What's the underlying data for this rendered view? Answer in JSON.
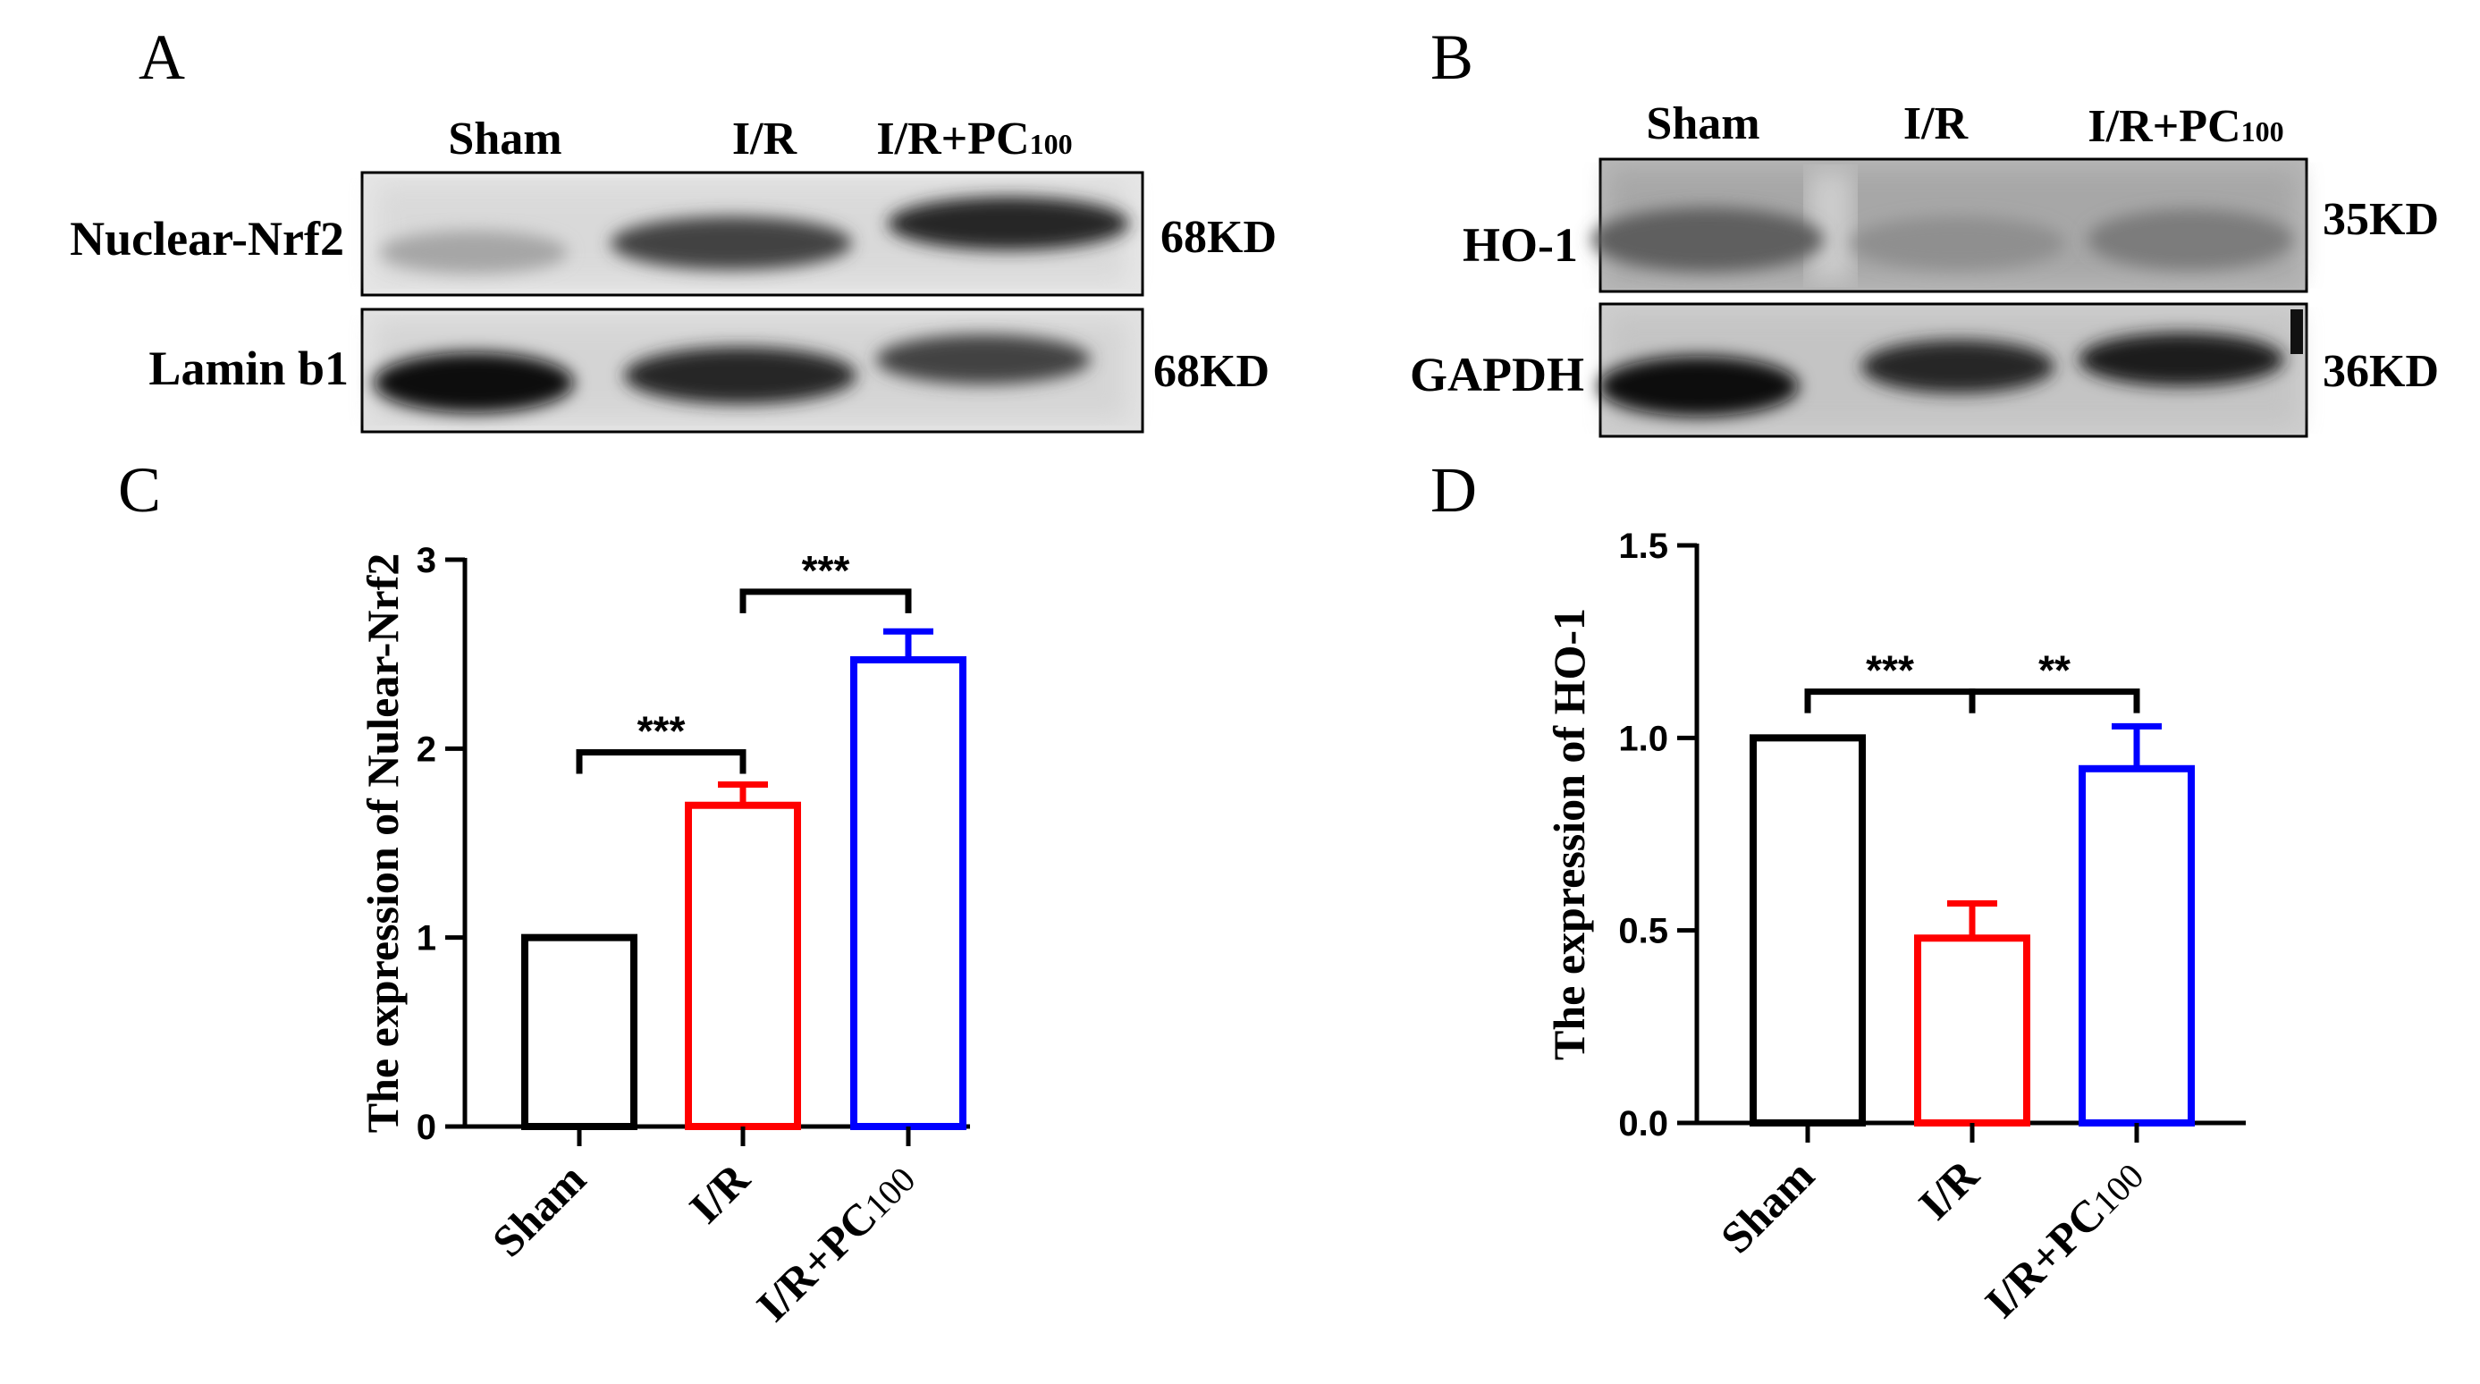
{
  "panels": {
    "A": {
      "letter": "A",
      "lanes": [
        {
          "main": "Sham",
          "sub": ""
        },
        {
          "main": "I/R",
          "sub": ""
        },
        {
          "main": "I/R+PC",
          "sub": "100"
        }
      ],
      "rows": [
        {
          "label": "Nuclear-Nrf2",
          "kd": "68KD",
          "intensities": [
            0.18,
            0.7,
            0.85
          ]
        },
        {
          "label": "Lamin b1",
          "kd": "68KD",
          "intensities": [
            1.0,
            0.85,
            0.7
          ]
        }
      ]
    },
    "B": {
      "letter": "B",
      "lanes": [
        {
          "main": "Sham",
          "sub": ""
        },
        {
          "main": "I/R",
          "sub": ""
        },
        {
          "main": "I/R+PC",
          "sub": "100"
        }
      ],
      "rows": [
        {
          "label": "HO-1",
          "kd": "35KD",
          "intensities": [
            0.55,
            0.3,
            0.4
          ]
        },
        {
          "label": "GAPDH",
          "kd": "36KD",
          "intensities": [
            1.0,
            0.85,
            0.9
          ]
        }
      ]
    },
    "C": {
      "letter": "C"
    },
    "D": {
      "letter": "D"
    }
  },
  "colors": {
    "sham": "#000000",
    "ir": "#ff0000",
    "pc": "#0000ff"
  },
  "chart_data": [
    {
      "type": "bar",
      "panel": "C",
      "categories": [
        {
          "main": "Sham",
          "sub": ""
        },
        {
          "main": "I/R",
          "sub": ""
        },
        {
          "main": "I/R+PC",
          "sub": "100"
        }
      ],
      "values": [
        1.0,
        1.7,
        2.47
      ],
      "errors": [
        0,
        0.11,
        0.15
      ],
      "ylabel": "The expression of Nulear-Nrf2",
      "ylim": [
        0,
        3
      ],
      "yticks": [
        0,
        1,
        2,
        3
      ],
      "ytick_labels": [
        "0",
        "1",
        "2",
        "3"
      ],
      "significance": [
        {
          "from": 0,
          "to": 1,
          "label": "***",
          "y": 1.98
        },
        {
          "from": 1,
          "to": 2,
          "label": "***",
          "y": 2.83
        }
      ]
    },
    {
      "type": "bar",
      "panel": "D",
      "categories": [
        {
          "main": "Sham",
          "sub": ""
        },
        {
          "main": "I/R",
          "sub": ""
        },
        {
          "main": "I/R+PC",
          "sub": "100"
        }
      ],
      "values": [
        1.0,
        0.48,
        0.92
      ],
      "errors": [
        0,
        0.09,
        0.11
      ],
      "ylabel": "The expression of HO-1",
      "ylim": [
        0,
        1.5
      ],
      "yticks": [
        0,
        0.5,
        1.0,
        1.5
      ],
      "ytick_labels": [
        "0.0",
        "0.5",
        "1.0",
        "1.5"
      ],
      "significance": [
        {
          "from": 0,
          "to": 1,
          "label": "***",
          "y": 1.12
        },
        {
          "from": 1,
          "to": 2,
          "label": "**",
          "y": 1.12
        }
      ]
    }
  ]
}
